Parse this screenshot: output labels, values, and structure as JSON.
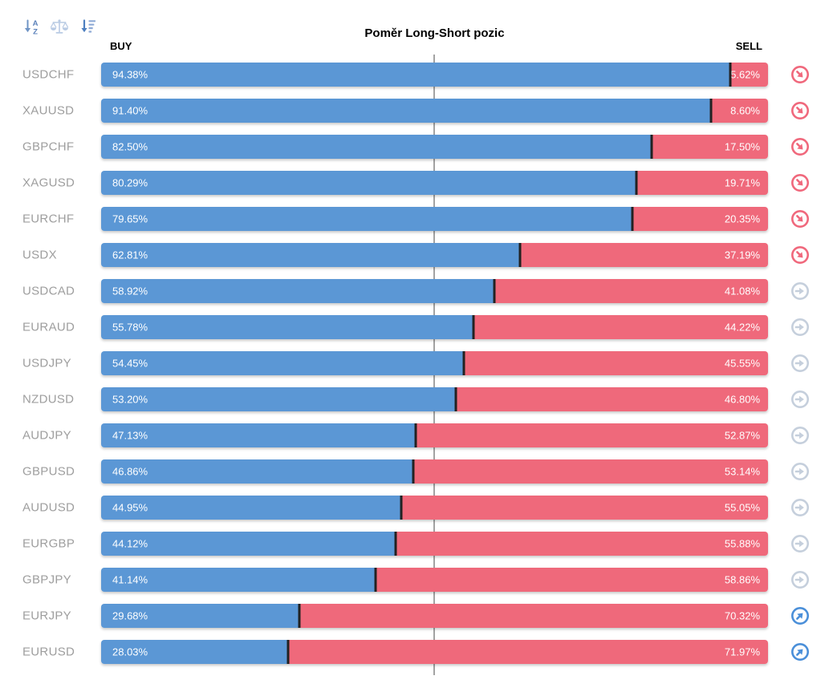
{
  "header": {
    "title": "Poměr Long-Short pozic",
    "buy_label": "BUY",
    "sell_label": "SELL",
    "toolbar": {
      "sort_alpha_icon": "sort-alphabetical",
      "balance_scale_icon": "balance-scale",
      "sort_amount_icon": "sort-by-value-descending"
    }
  },
  "colors": {
    "buy": "#5b97d5",
    "sell": "#ef697b",
    "label_gray": "#9e9e9e",
    "trend_down": "#f0687c",
    "trend_flat": "#c5cfdc",
    "trend_up": "#4a8fd9",
    "center_line": "#a3a3a3",
    "divider": "#222222"
  },
  "chart_data": {
    "type": "bar",
    "orientation": "horizontal-stacked",
    "title": "Poměr Long-Short pozic",
    "series": [
      {
        "name": "BUY",
        "color": "#5b97d5"
      },
      {
        "name": "SELL",
        "color": "#ef697b"
      }
    ],
    "xlim": [
      0,
      100
    ],
    "center_line_pct": 50,
    "grid": false,
    "legend_position": "top-columns",
    "rows": [
      {
        "pair": "USDCHF",
        "buy": 94.38,
        "sell": 5.62,
        "buy_label": "94.38%",
        "sell_label": "5.62%",
        "trend": "down"
      },
      {
        "pair": "XAUUSD",
        "buy": 91.4,
        "sell": 8.6,
        "buy_label": "91.40%",
        "sell_label": "8.60%",
        "trend": "down"
      },
      {
        "pair": "GBPCHF",
        "buy": 82.5,
        "sell": 17.5,
        "buy_label": "82.50%",
        "sell_label": "17.50%",
        "trend": "down"
      },
      {
        "pair": "XAGUSD",
        "buy": 80.29,
        "sell": 19.71,
        "buy_label": "80.29%",
        "sell_label": "19.71%",
        "trend": "down"
      },
      {
        "pair": "EURCHF",
        "buy": 79.65,
        "sell": 20.35,
        "buy_label": "79.65%",
        "sell_label": "20.35%",
        "trend": "down"
      },
      {
        "pair": "USDX",
        "buy": 62.81,
        "sell": 37.19,
        "buy_label": "62.81%",
        "sell_label": "37.19%",
        "trend": "down"
      },
      {
        "pair": "USDCAD",
        "buy": 58.92,
        "sell": 41.08,
        "buy_label": "58.92%",
        "sell_label": "41.08%",
        "trend": "flat"
      },
      {
        "pair": "EURAUD",
        "buy": 55.78,
        "sell": 44.22,
        "buy_label": "55.78%",
        "sell_label": "44.22%",
        "trend": "flat"
      },
      {
        "pair": "USDJPY",
        "buy": 54.45,
        "sell": 45.55,
        "buy_label": "54.45%",
        "sell_label": "45.55%",
        "trend": "flat"
      },
      {
        "pair": "NZDUSD",
        "buy": 53.2,
        "sell": 46.8,
        "buy_label": "53.20%",
        "sell_label": "46.80%",
        "trend": "flat"
      },
      {
        "pair": "AUDJPY",
        "buy": 47.13,
        "sell": 52.87,
        "buy_label": "47.13%",
        "sell_label": "52.87%",
        "trend": "flat"
      },
      {
        "pair": "GBPUSD",
        "buy": 46.86,
        "sell": 53.14,
        "buy_label": "46.86%",
        "sell_label": "53.14%",
        "trend": "flat"
      },
      {
        "pair": "AUDUSD",
        "buy": 44.95,
        "sell": 55.05,
        "buy_label": "44.95%",
        "sell_label": "55.05%",
        "trend": "flat"
      },
      {
        "pair": "EURGBP",
        "buy": 44.12,
        "sell": 55.88,
        "buy_label": "44.12%",
        "sell_label": "55.88%",
        "trend": "flat"
      },
      {
        "pair": "GBPJPY",
        "buy": 41.14,
        "sell": 58.86,
        "buy_label": "41.14%",
        "sell_label": "58.86%",
        "trend": "flat"
      },
      {
        "pair": "EURJPY",
        "buy": 29.68,
        "sell": 70.32,
        "buy_label": "29.68%",
        "sell_label": "70.32%",
        "trend": "up"
      },
      {
        "pair": "EURUSD",
        "buy": 28.03,
        "sell": 71.97,
        "buy_label": "28.03%",
        "sell_label": "71.97%",
        "trend": "up"
      }
    ]
  }
}
